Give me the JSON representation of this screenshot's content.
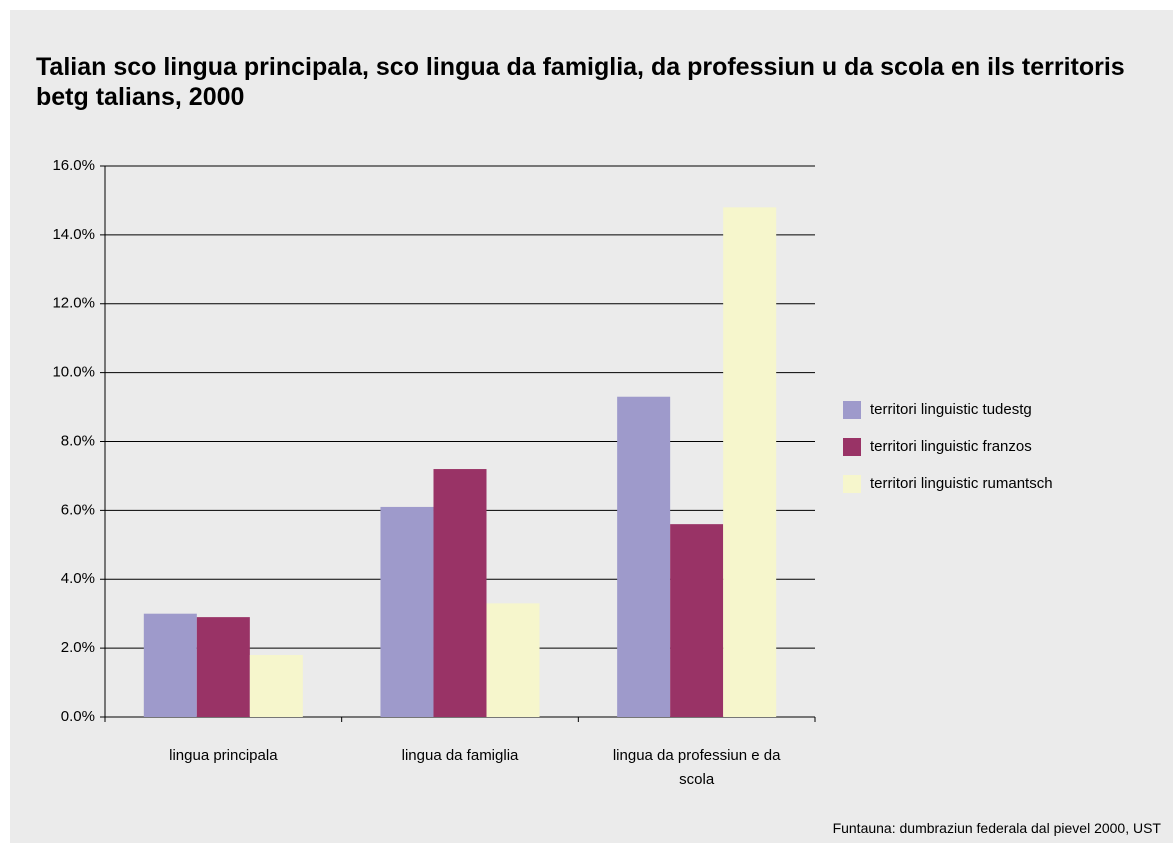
{
  "chart_data": {
    "type": "bar",
    "title": "Talian sco lingua principala, sco lingua da famiglia, da professiun u da scola en ils territoris betg talians, 2000",
    "categories": [
      "lingua principala",
      "lingua da famiglia",
      "lingua da professiun e da scola"
    ],
    "series": [
      {
        "name": "territori linguistic tudestg",
        "color": "#9e9acb",
        "values": [
          3.0,
          6.1,
          9.3
        ]
      },
      {
        "name": "territori linguistic franzos",
        "color": "#993366",
        "values": [
          2.9,
          7.2,
          5.6
        ]
      },
      {
        "name": "territori linguistic rumantsch",
        "color": "#f6f6cc",
        "values": [
          1.8,
          3.3,
          14.8
        ]
      }
    ],
    "ylim": [
      0,
      16
    ],
    "yticks": [
      {
        "value": 0,
        "label": "0.0%"
      },
      {
        "value": 2,
        "label": "2.0%"
      },
      {
        "value": 4,
        "label": "4.0%"
      },
      {
        "value": 6,
        "label": "6.0%"
      },
      {
        "value": 8,
        "label": "8.0%"
      },
      {
        "value": 10,
        "label": "10.0%"
      },
      {
        "value": 12,
        "label": "12.0%"
      },
      {
        "value": 14,
        "label": "14.0%"
      },
      {
        "value": 16,
        "label": "16.0%"
      }
    ],
    "grid": true,
    "legend": "right",
    "source": "Funtauna: dumbraziun federala dal pievel 2000, UST"
  }
}
